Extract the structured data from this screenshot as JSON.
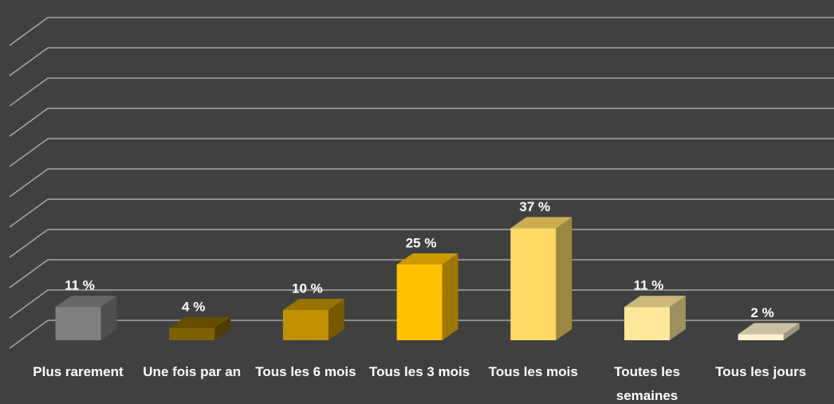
{
  "chart_data": {
    "type": "bar3d",
    "categories": [
      "Plus rarement",
      "Une fois par an",
      "Tous les 6 mois",
      "Tous les 3 mois",
      "Tous les mois",
      "Toutes les semaines",
      "Tous les jours"
    ],
    "values": [
      11,
      4,
      10,
      25,
      37,
      11,
      2
    ],
    "value_labels": [
      "11 %",
      "4 %",
      "10 %",
      "25 %",
      "37 %",
      "11 %",
      "2 %"
    ],
    "colors": [
      "#7f7f7f",
      "#7f6000",
      "#bf9000",
      "#ffc000",
      "#ffd966",
      "#ffe699",
      "#fff2cc"
    ],
    "ylim": [
      0,
      100
    ],
    "yticks": [
      0,
      10,
      20,
      30,
      40,
      50,
      60,
      70,
      80,
      90,
      100
    ],
    "grid": true
  }
}
